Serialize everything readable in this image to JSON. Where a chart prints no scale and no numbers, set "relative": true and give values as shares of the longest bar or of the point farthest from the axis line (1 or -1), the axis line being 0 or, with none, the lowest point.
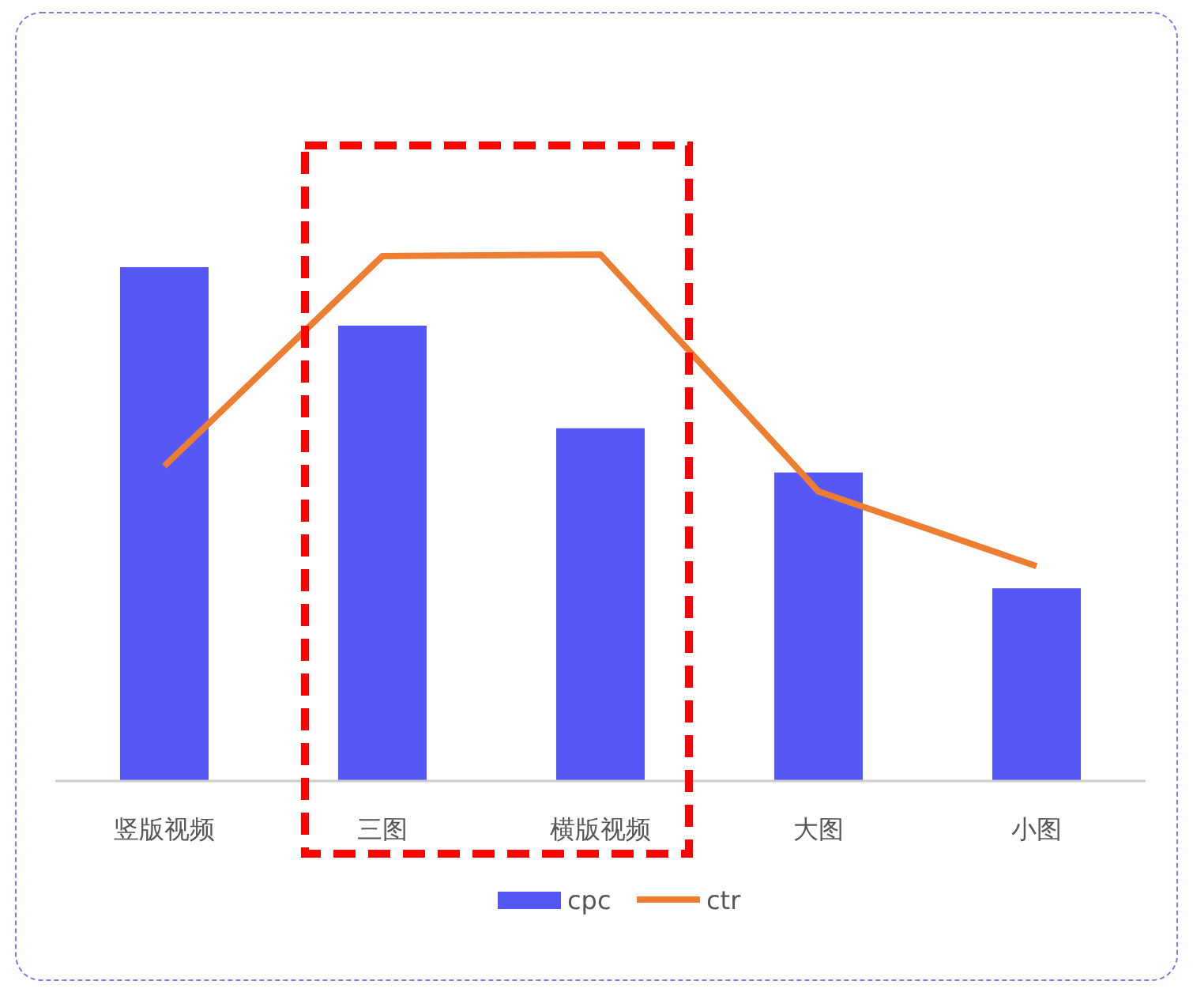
{
  "chart_data": {
    "type": "bar",
    "relative": true,
    "categories": [
      "竖版视频",
      "三图",
      "横版视频",
      "大图",
      "小图"
    ],
    "series": [
      {
        "name": "cpc",
        "color": "#5558f5",
        "values": [
          0.976,
          0.865,
          0.67,
          0.586,
          0.366
        ]
      },
      {
        "name": "ctr",
        "type": "line",
        "color": "#ed7d31",
        "values": [
          0.598,
          0.997,
          1,
          0.55,
          0.408
        ]
      }
    ],
    "legend": "bottom",
    "grid": false,
    "marker": "none"
  }
}
